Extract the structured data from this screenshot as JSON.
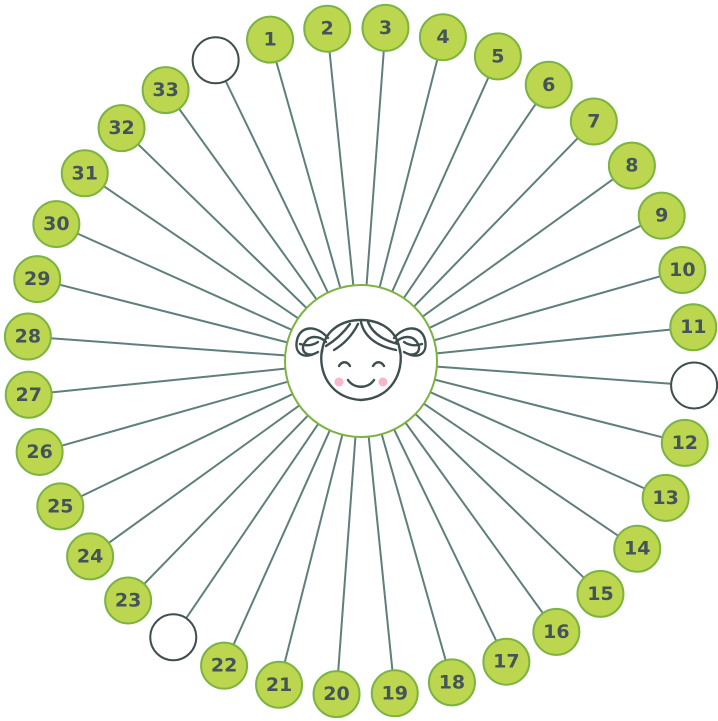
{
  "diagram": {
    "type": "radial-spoke-diagram",
    "center_icon": "girl-face-icon",
    "colors": {
      "node_fill": "#bcd64f",
      "node_stroke": "#7cb342",
      "spoke": "#5f7f7c",
      "label": "#45545a",
      "hub_stroke": "#7cb342",
      "empty_stroke": "#3f4f4f"
    },
    "nodes": [
      {
        "label": "",
        "empty": true
      },
      {
        "label": "1",
        "empty": false
      },
      {
        "label": "2",
        "empty": false
      },
      {
        "label": "3",
        "empty": false
      },
      {
        "label": "4",
        "empty": false
      },
      {
        "label": "5",
        "empty": false
      },
      {
        "label": "6",
        "empty": false
      },
      {
        "label": "7",
        "empty": false
      },
      {
        "label": "8",
        "empty": false
      },
      {
        "label": "9",
        "empty": false
      },
      {
        "label": "10",
        "empty": false
      },
      {
        "label": "11",
        "empty": false
      },
      {
        "label": "",
        "empty": true
      },
      {
        "label": "12",
        "empty": false
      },
      {
        "label": "13",
        "empty": false
      },
      {
        "label": "14",
        "empty": false
      },
      {
        "label": "15",
        "empty": false
      },
      {
        "label": "16",
        "empty": false
      },
      {
        "label": "17",
        "empty": false
      },
      {
        "label": "18",
        "empty": false
      },
      {
        "label": "19",
        "empty": false
      },
      {
        "label": "20",
        "empty": false
      },
      {
        "label": "21",
        "empty": false
      },
      {
        "label": "22",
        "empty": false
      },
      {
        "label": "",
        "empty": true
      },
      {
        "label": "23",
        "empty": false
      },
      {
        "label": "24",
        "empty": false
      },
      {
        "label": "25",
        "empty": false
      },
      {
        "label": "26",
        "empty": false
      },
      {
        "label": "27",
        "empty": false
      },
      {
        "label": "28",
        "empty": false
      },
      {
        "label": "29",
        "empty": false
      },
      {
        "label": "30",
        "empty": false
      },
      {
        "label": "31",
        "empty": false
      },
      {
        "label": "32",
        "empty": false
      },
      {
        "label": "33",
        "empty": false
      }
    ]
  }
}
